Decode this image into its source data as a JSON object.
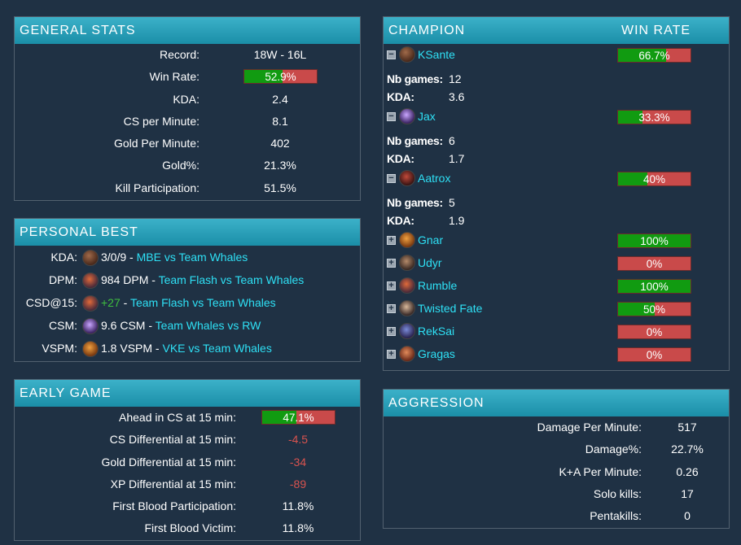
{
  "general_stats": {
    "title": "GENERAL STATS",
    "rows": [
      {
        "label": "Record:",
        "value": "18W - 16L"
      },
      {
        "label": "Win Rate:",
        "bar_text": "52.9%",
        "bar_percent": 52.9
      },
      {
        "label": "KDA:",
        "value": "2.4"
      },
      {
        "label": "CS per Minute:",
        "value": "8.1"
      },
      {
        "label": "Gold Per Minute:",
        "value": "402"
      },
      {
        "label": "Gold%:",
        "value": "21.3%"
      },
      {
        "label": "Kill Participation:",
        "value": "51.5%"
      }
    ]
  },
  "personal_best": {
    "title": "PERSONAL BEST",
    "rows": [
      {
        "label": "KDA:",
        "icon": "ksante-icon",
        "value": "3/0/9",
        "sep": " - ",
        "match": "MBE vs Team Whales"
      },
      {
        "label": "DPM:",
        "icon": "rumble-icon",
        "value": "984 DPM",
        "sep": " - ",
        "match": "Team Flash vs Team Whales"
      },
      {
        "label": "CSD@15:",
        "icon": "rumble-icon",
        "value": "+27",
        "sep": " - ",
        "match": "Team Flash vs Team Whales"
      },
      {
        "label": "CSM:",
        "icon": "jax-icon",
        "value": "9.6 CSM",
        "sep": " - ",
        "match": "Team Whales vs RW"
      },
      {
        "label": "VSPM:",
        "icon": "gnar-icon",
        "value": "1.8 VSPM",
        "sep": " - ",
        "match": "VKE vs Team Whales"
      }
    ]
  },
  "early_game": {
    "title": "EARLY GAME",
    "rows": [
      {
        "label": "Ahead in CS at 15 min:",
        "bar_text": "47.1%",
        "bar_percent": 47.1
      },
      {
        "label": "CS Differential at 15 min:",
        "value": "-4.5",
        "tone": "neg"
      },
      {
        "label": "Gold Differential at 15 min:",
        "value": "-34",
        "tone": "neg"
      },
      {
        "label": "XP Differential at 15 min:",
        "value": "-89",
        "tone": "neg"
      },
      {
        "label": "First Blood Participation:",
        "value": "11.8%"
      },
      {
        "label": "First Blood Victim:",
        "value": "11.8%"
      }
    ]
  },
  "champions": {
    "col_champion": "CHAMPION",
    "col_winrate": "WIN RATE",
    "nb_games_label": "Nb games:",
    "kda_label": "KDA:",
    "list": [
      {
        "name": "KSante",
        "icon": "ksante-icon",
        "expanded": true,
        "expander": "−",
        "winrate_text": "66.7%",
        "winrate": 66.7,
        "nb_games": "12",
        "kda": "3.6"
      },
      {
        "name": "Jax",
        "icon": "jax-icon",
        "expanded": true,
        "expander": "−",
        "winrate_text": "33.3%",
        "winrate": 33.3,
        "nb_games": "6",
        "kda": "1.7"
      },
      {
        "name": "Aatrox",
        "icon": "aatrox-icon",
        "expanded": true,
        "expander": "−",
        "winrate_text": "40%",
        "winrate": 40,
        "nb_games": "5",
        "kda": "1.9"
      },
      {
        "name": "Gnar",
        "icon": "gnar-icon",
        "expanded": false,
        "expander": "+",
        "winrate_text": "100%",
        "winrate": 100
      },
      {
        "name": "Udyr",
        "icon": "udyr-icon",
        "expanded": false,
        "expander": "+",
        "winrate_text": "0%",
        "winrate": 0
      },
      {
        "name": "Rumble",
        "icon": "rumble-icon",
        "expanded": false,
        "expander": "+",
        "winrate_text": "100%",
        "winrate": 100
      },
      {
        "name": "Twisted Fate",
        "icon": "twisted-fate-icon",
        "expanded": false,
        "expander": "+",
        "winrate_text": "50%",
        "winrate": 50
      },
      {
        "name": "RekSai",
        "icon": "reksai-icon",
        "expanded": false,
        "expander": "+",
        "winrate_text": "0%",
        "winrate": 0
      },
      {
        "name": "Gragas",
        "icon": "gragas-icon",
        "expanded": false,
        "expander": "+",
        "winrate_text": "0%",
        "winrate": 0
      }
    ]
  },
  "aggression": {
    "title": "AGGRESSION",
    "rows": [
      {
        "label": "Damage Per Minute:",
        "value": "517"
      },
      {
        "label": "Damage%:",
        "value": "22.7%"
      },
      {
        "label": "K+A Per Minute:",
        "value": "0.26"
      },
      {
        "label": "Solo kills:",
        "value": "17"
      },
      {
        "label": "Pentakills:",
        "value": "0"
      }
    ]
  },
  "colors": {
    "background": "#1f3144",
    "header": "#2aa3bd",
    "win": "#119b11",
    "loss": "#c94a4a",
    "link": "#2ee0f5",
    "positive": "#3fbf3f",
    "negative": "#d9534f"
  }
}
